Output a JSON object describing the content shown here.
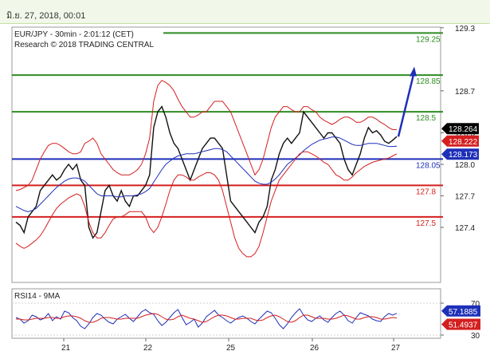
{
  "header": {
    "timestamp": "มิ.ย. 27, 2018, 00:01"
  },
  "chart_data": [
    {
      "type": "line",
      "title": "EUR/JPY - 30min - 2:01:12 (CET)",
      "subtitle": "Research © 2018 TRADING CENTRAL",
      "x_ticks": [
        "21",
        "22",
        "25",
        "26",
        "27"
      ],
      "y_ticks": [
        127.4,
        127.7,
        128.0,
        128.3,
        128.7,
        129.3
      ],
      "y_tick_labels": [
        "127.4",
        "127.7",
        "128.0",
        "128.3",
        "128.7",
        "129.3"
      ],
      "ylim": [
        127.08,
        129.3
      ],
      "levels": [
        {
          "value": 129.25,
          "label": "129.25",
          "color": "#2e8b22"
        },
        {
          "value": 128.85,
          "label": "128.85",
          "color": "#2e8b22"
        },
        {
          "value": 128.5,
          "label": "128.5",
          "color": "#2e8b22"
        },
        {
          "value": 128.05,
          "label": "128.05",
          "color": "#1e2fb8"
        },
        {
          "value": 127.8,
          "label": "127.8",
          "color": "#d41f1f"
        },
        {
          "value": 127.5,
          "label": "127.5",
          "color": "#d41f1f"
        }
      ],
      "price_tags": [
        {
          "value": 128.264,
          "label": "128.264",
          "bg": "#000000",
          "fg": "#ffffff"
        },
        {
          "value": 128.222,
          "label": "128.222",
          "bg": "#d41f1f",
          "fg": "#ffffff"
        },
        {
          "value": 128.173,
          "label": "128.173",
          "bg": "#1e2fb8",
          "fg": "#ffffff"
        }
      ],
      "forecast_target": 128.9,
      "series": [
        {
          "values": [
            127.45,
            127.42,
            127.35,
            127.5,
            127.55,
            127.6,
            127.75,
            127.8,
            127.85,
            127.9,
            127.85,
            127.88,
            127.95,
            128.0,
            127.95,
            128.0,
            127.85,
            127.8,
            127.4,
            127.3,
            127.35,
            127.55,
            127.75,
            127.8,
            127.7,
            127.65,
            127.75,
            127.65,
            127.6,
            127.7,
            127.7,
            127.75,
            127.8,
            127.9,
            128.35,
            128.5,
            128.55,
            128.45,
            128.3,
            128.2,
            128.15,
            128.05,
            127.95,
            127.85,
            127.95,
            128.05,
            128.15,
            128.2,
            128.25,
            128.25,
            128.2,
            128.15,
            127.9,
            127.65,
            127.6,
            127.55,
            127.5,
            127.45,
            127.4,
            127.35,
            127.45,
            127.5,
            127.6,
            127.85,
            127.95,
            128.1,
            128.2,
            128.25,
            128.2,
            128.25,
            128.3,
            128.5,
            128.45,
            128.4,
            128.35,
            128.3,
            128.25,
            128.3,
            128.3,
            128.25,
            128.2,
            128.05,
            127.95,
            127.9,
            128.0,
            128.1,
            128.25,
            128.35,
            128.3,
            128.32,
            128.28,
            128.22,
            128.2,
            128.23,
            128.264
          ]
        },
        {
          "values": [
            127.6,
            127.58,
            127.56,
            127.55,
            127.56,
            127.58,
            127.62,
            127.66,
            127.7,
            127.74,
            127.78,
            127.81,
            127.84,
            127.86,
            127.87,
            127.87,
            127.86,
            127.84,
            127.8,
            127.76,
            127.72,
            127.7,
            127.7,
            127.7,
            127.7,
            127.69,
            127.69,
            127.7,
            127.7,
            127.7,
            127.71,
            127.72,
            127.74,
            127.77,
            127.83,
            127.89,
            127.95,
            128.0,
            128.03,
            128.06,
            128.08,
            128.09,
            128.1,
            128.1,
            128.1,
            128.11,
            128.12,
            128.13,
            128.14,
            128.15,
            128.15,
            128.14,
            128.12,
            128.08,
            128.04,
            128.0,
            127.96,
            127.92,
            127.88,
            127.84,
            127.82,
            127.81,
            127.81,
            127.83,
            127.86,
            127.9,
            127.95,
            128.0,
            128.03,
            128.06,
            128.09,
            128.13,
            128.16,
            128.19,
            128.21,
            128.23,
            128.24,
            128.25,
            128.26,
            128.26,
            128.25,
            128.23,
            128.21,
            128.19,
            128.18,
            128.18,
            128.19,
            128.2,
            128.2,
            128.2,
            128.19,
            128.18,
            128.17,
            128.17,
            128.173
          ]
        },
        {
          "values": [
            127.75,
            127.76,
            127.78,
            127.8,
            127.85,
            127.95,
            128.05,
            128.12,
            128.18,
            128.2,
            128.2,
            128.18,
            128.15,
            128.12,
            128.1,
            128.1,
            128.12,
            128.2,
            128.22,
            128.25,
            128.2,
            128.1,
            128.05,
            128.0,
            127.95,
            127.92,
            127.9,
            127.9,
            127.9,
            127.92,
            127.95,
            128.0,
            128.1,
            128.25,
            128.6,
            128.75,
            128.8,
            128.78,
            128.75,
            128.7,
            128.62,
            128.55,
            128.5,
            128.45,
            128.45,
            128.47,
            128.5,
            128.5,
            128.55,
            128.6,
            128.6,
            128.6,
            128.55,
            128.5,
            128.4,
            128.3,
            128.2,
            128.1,
            128.0,
            127.9,
            127.95,
            128.05,
            128.2,
            128.35,
            128.45,
            128.5,
            128.55,
            128.55,
            128.52,
            128.5,
            128.5,
            128.55,
            128.55,
            128.52,
            128.5,
            128.45,
            128.42,
            128.4,
            128.38,
            128.4,
            128.43,
            128.45,
            128.45,
            128.43,
            128.4,
            128.4,
            128.42,
            128.45,
            128.45,
            128.43,
            128.4,
            128.38,
            128.35,
            128.33,
            128.33
          ]
        },
        {
          "values": [
            127.25,
            127.22,
            127.2,
            127.22,
            127.25,
            127.28,
            127.32,
            127.38,
            127.45,
            127.52,
            127.58,
            127.62,
            127.65,
            127.68,
            127.7,
            127.72,
            127.7,
            127.6,
            127.45,
            127.35,
            127.3,
            127.3,
            127.35,
            127.42,
            127.48,
            127.5,
            127.5,
            127.52,
            127.55,
            127.55,
            127.55,
            127.55,
            127.5,
            127.4,
            127.35,
            127.4,
            127.5,
            127.62,
            127.75,
            127.85,
            127.9,
            127.9,
            127.88,
            127.85,
            127.85,
            127.88,
            127.9,
            127.92,
            127.92,
            127.9,
            127.85,
            127.75,
            127.6,
            127.45,
            127.3,
            127.2,
            127.15,
            127.12,
            127.12,
            127.15,
            127.22,
            127.35,
            127.5,
            127.65,
            127.75,
            127.85,
            127.9,
            127.95,
            128.0,
            128.05,
            128.1,
            128.12,
            128.12,
            128.1,
            128.08,
            128.05,
            128.02,
            128.0,
            127.95,
            127.9,
            127.88,
            127.85,
            127.85,
            127.88,
            127.92,
            127.95,
            127.98,
            128.0,
            128.02,
            128.03,
            128.04,
            128.05,
            128.06,
            128.08,
            128.1
          ]
        }
      ]
    },
    {
      "type": "line",
      "title": "RSI14 - 9MA",
      "y_ticks": [
        70,
        30
      ],
      "y_tick_labels": [
        "70",
        "30"
      ],
      "ylim": [
        24,
        78
      ],
      "tags": [
        {
          "value": 57.1885,
          "label": "57.1885",
          "bg": "#1e2fb8",
          "fg": "#ffffff"
        },
        {
          "value": 51.4937,
          "label": "51.4937",
          "bg": "#d41f1f",
          "fg": "#ffffff"
        }
      ],
      "series": [
        {
          "values": [
            52,
            50,
            45,
            48,
            55,
            53,
            49,
            51,
            57,
            48,
            53,
            50,
            60,
            58,
            52,
            48,
            41,
            38,
            44,
            52,
            57,
            55,
            50,
            46,
            44,
            50,
            53,
            56,
            51,
            47,
            53,
            59,
            62,
            58,
            56,
            48,
            42,
            46,
            52,
            58,
            62,
            52,
            43,
            46,
            50,
            40,
            45,
            53,
            57,
            61,
            55,
            52,
            48,
            45,
            49,
            52,
            54,
            51,
            47,
            44,
            50,
            55,
            60,
            58,
            51,
            43,
            38,
            44,
            52,
            58,
            63,
            55,
            49,
            47,
            51,
            54,
            49,
            46,
            52,
            57,
            60,
            55,
            48,
            45,
            52,
            58,
            56,
            54,
            50,
            48,
            47,
            53,
            57,
            55,
            57.1885
          ]
        },
        {
          "values": [
            50,
            50,
            49,
            49,
            50,
            51,
            51,
            51,
            52,
            52,
            51,
            51,
            53,
            54,
            54,
            53,
            51,
            48,
            46,
            46,
            48,
            51,
            52,
            52,
            51,
            50,
            50,
            51,
            51,
            51,
            51,
            53,
            55,
            56,
            57,
            56,
            53,
            50,
            49,
            50,
            53,
            55,
            53,
            51,
            50,
            48,
            46,
            47,
            50,
            53,
            55,
            55,
            54,
            52,
            50,
            50,
            51,
            51,
            51,
            49,
            48,
            49,
            52,
            54,
            55,
            53,
            50,
            47,
            46,
            48,
            52,
            55,
            55,
            53,
            51,
            51,
            51,
            50,
            50,
            51,
            53,
            55,
            54,
            52,
            50,
            50,
            52,
            53,
            53,
            52,
            50,
            50,
            51,
            52,
            51.4937
          ]
        }
      ]
    }
  ]
}
